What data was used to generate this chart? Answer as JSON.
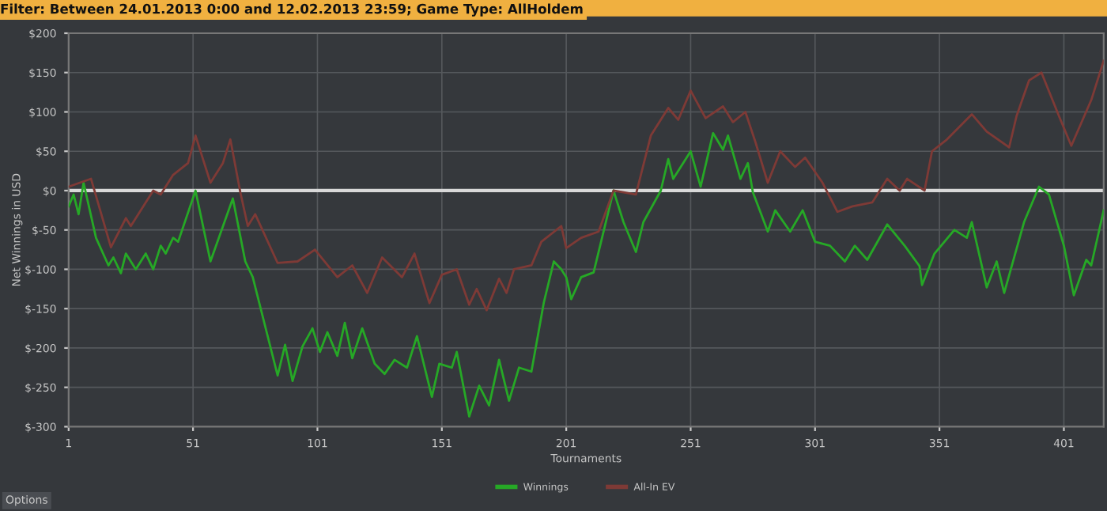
{
  "chart_data": {
    "type": "line",
    "title": "Filter: Between 24.01.2013 0:00 and 12.02.2013 23:59; Game Type: AllHoldem",
    "xlabel": "Tournaments",
    "ylabel": "Net Winnings in USD",
    "annotations": [
      "Options"
    ],
    "xlim": [
      1,
      417
    ],
    "xticks": [
      1,
      51,
      101,
      151,
      201,
      251,
      301,
      351,
      401
    ],
    "ylim": [
      -300,
      200
    ],
    "yticks": [
      {
        "value": 200,
        "label": "$200"
      },
      {
        "value": 150,
        "label": "$150"
      },
      {
        "value": 100,
        "label": "$100"
      },
      {
        "value": 50,
        "label": "$50"
      },
      {
        "value": 0,
        "label": "$0"
      },
      {
        "value": -50,
        "label": "$-50"
      },
      {
        "value": -100,
        "label": "$-100"
      },
      {
        "value": -150,
        "label": "$-150"
      },
      {
        "value": -200,
        "label": "$-200"
      },
      {
        "value": -250,
        "label": "$-250"
      },
      {
        "value": -300,
        "label": "$-300"
      }
    ],
    "grid": true,
    "legend": "bottom",
    "marker": "none",
    "line_style": "solid",
    "ref_lines": [
      {
        "axis": "y",
        "value": 0,
        "color": "#d8d8d8"
      }
    ],
    "series": [
      {
        "name": "Winnings",
        "color": "#26a826",
        "x": [
          1,
          3,
          5,
          7,
          12,
          17,
          19,
          22,
          24,
          28,
          32,
          35,
          38,
          40,
          43,
          45,
          52,
          58,
          67,
          72,
          75,
          85,
          88,
          91,
          95,
          99,
          102,
          105,
          109,
          112,
          115,
          119,
          124,
          128,
          132,
          137,
          141,
          147,
          150,
          155,
          157,
          162,
          166,
          170,
          174,
          178,
          182,
          187,
          192,
          196,
          199,
          201,
          203,
          207,
          212,
          220,
          224,
          229,
          232,
          239,
          242,
          244,
          251,
          255,
          260,
          264,
          266,
          271,
          274,
          276,
          282,
          285,
          291,
          296,
          301,
          307,
          313,
          317,
          322,
          330,
          337,
          343,
          344,
          349,
          357,
          362,
          364,
          370,
          374,
          377,
          385,
          391,
          395,
          401,
          405,
          410,
          412,
          417
        ],
        "values": [
          -20,
          -5,
          -30,
          10,
          -60,
          -95,
          -85,
          -105,
          -80,
          -100,
          -80,
          -100,
          -70,
          -80,
          -60,
          -65,
          0,
          -90,
          -10,
          -90,
          -110,
          -235,
          -196,
          -242,
          -198,
          -175,
          -205,
          -180,
          -210,
          -168,
          -213,
          -175,
          -220,
          -233,
          -215,
          -225,
          -185,
          -262,
          -220,
          -225,
          -205,
          -287,
          -248,
          -273,
          -215,
          -267,
          -225,
          -230,
          -142,
          -90,
          -100,
          -110,
          -138,
          -110,
          -104,
          0,
          -40,
          -78,
          -40,
          0,
          40,
          15,
          50,
          5,
          73,
          52,
          70,
          15,
          35,
          -2,
          -52,
          -25,
          -52,
          -25,
          -65,
          -70,
          -90,
          -70,
          -88,
          -43,
          -70,
          -96,
          -120,
          -80,
          -50,
          -60,
          -40,
          -123,
          -90,
          -130,
          -40,
          5,
          -5,
          -70,
          -133,
          -88,
          -95,
          -25
        ]
      },
      {
        "name": "All-In EV",
        "color": "#7e3a36",
        "x": [
          1,
          10,
          18,
          24,
          26,
          35,
          38,
          43,
          49,
          52,
          58,
          63,
          66,
          70,
          73,
          76,
          85,
          93,
          100,
          109,
          115,
          121,
          127,
          135,
          140,
          146,
          151,
          157,
          162,
          165,
          169,
          174,
          177,
          180,
          187,
          191,
          199,
          201,
          207,
          214,
          220,
          229,
          235,
          242,
          246,
          251,
          257,
          264,
          268,
          273,
          277,
          282,
          287,
          293,
          297,
          304,
          310,
          316,
          324,
          330,
          335,
          338,
          345,
          348,
          354,
          364,
          370,
          379,
          382,
          387,
          392,
          399,
          404,
          412,
          417
        ],
        "values": [
          5,
          15,
          -72,
          -35,
          -45,
          0,
          -5,
          20,
          35,
          70,
          10,
          35,
          65,
          -2,
          -45,
          -30,
          -92,
          -90,
          -75,
          -110,
          -95,
          -130,
          -85,
          -110,
          -80,
          -143,
          -107,
          -100,
          -145,
          -125,
          -152,
          -112,
          -130,
          -100,
          -95,
          -65,
          -45,
          -73,
          -60,
          -52,
          0,
          -5,
          70,
          105,
          90,
          127,
          92,
          107,
          87,
          100,
          62,
          10,
          50,
          30,
          42,
          10,
          -27,
          -20,
          -15,
          15,
          0,
          15,
          0,
          50,
          65,
          97,
          75,
          55,
          95,
          140,
          150,
          95,
          57,
          115,
          165
        ]
      }
    ]
  }
}
